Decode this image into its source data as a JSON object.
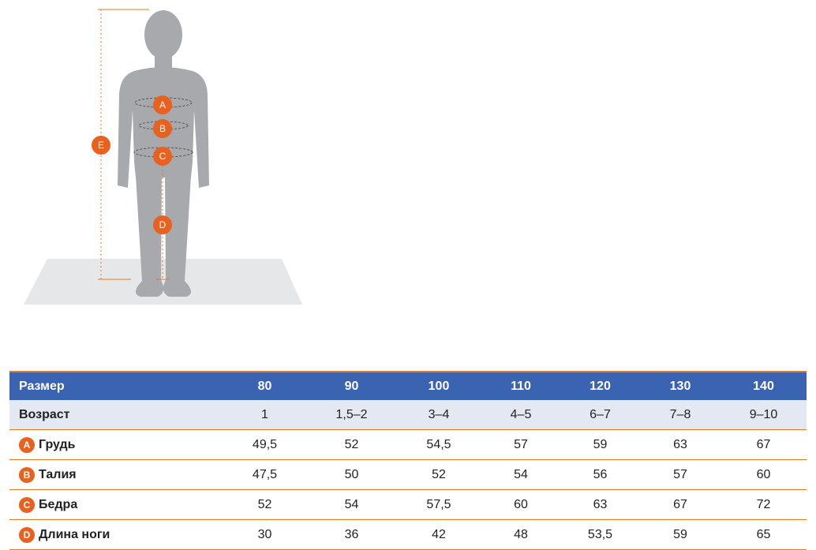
{
  "figure": {
    "markers": [
      "A",
      "B",
      "C",
      "D",
      "E"
    ]
  },
  "table": {
    "header": [
      "Размер",
      "80",
      "90",
      "100",
      "110",
      "120",
      "130",
      "140"
    ],
    "rows": [
      {
        "label": "Возраст",
        "cells": [
          "1",
          "1,5–2",
          "3–4",
          "4–5",
          "6–7",
          "7–8",
          "9–10"
        ]
      },
      {
        "badge": "A",
        "label": "Грудь",
        "cells": [
          "49,5",
          "52",
          "54,5",
          "57",
          "59",
          "63",
          "67"
        ]
      },
      {
        "badge": "B",
        "label": "Талия",
        "cells": [
          "47,5",
          "50",
          "52",
          "54",
          "56",
          "57",
          "60"
        ]
      },
      {
        "badge": "C",
        "label": "Бедра",
        "cells": [
          "52",
          "54",
          "57,5",
          "60",
          "63",
          "67",
          "72"
        ]
      },
      {
        "badge": "D",
        "label": "Длина ноги",
        "cells": [
          "30",
          "36",
          "42",
          "48",
          "53,5",
          "59",
          "65"
        ]
      }
    ]
  }
}
